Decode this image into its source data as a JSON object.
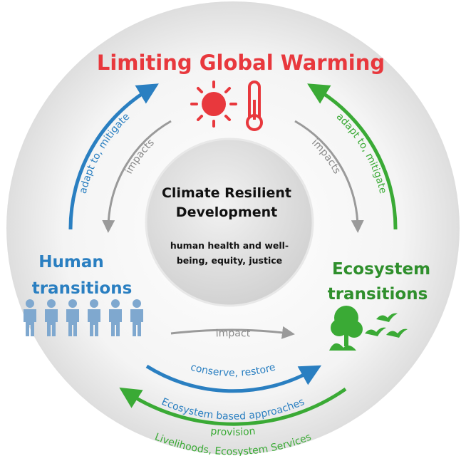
{
  "title": "Limiting Global Warming",
  "center": {
    "title": [
      "Climate Resilient",
      "Development"
    ],
    "subtitle": [
      "human health and well-",
      "being, equity, justice"
    ]
  },
  "human": {
    "label": [
      "Human",
      "transitions"
    ]
  },
  "ecosystem": {
    "label": [
      "Ecosystem",
      "transitions"
    ]
  },
  "arrows": {
    "human_to_warming": "adapt to, mitigate",
    "ecosystem_to_warming": "adapt to, mitigate",
    "warming_to_human": "impacts",
    "warming_to_ecosystem": "impacts",
    "human_to_ecosystem": "impact",
    "human_to_ecosystem_action": "conserve, restore",
    "human_to_ecosystem_approach": "Ecosystem based approaches",
    "ecosystem_to_human_action": "provision",
    "ecosystem_to_human_benefit": "Livelihoods, Ecosystem Services"
  }
}
